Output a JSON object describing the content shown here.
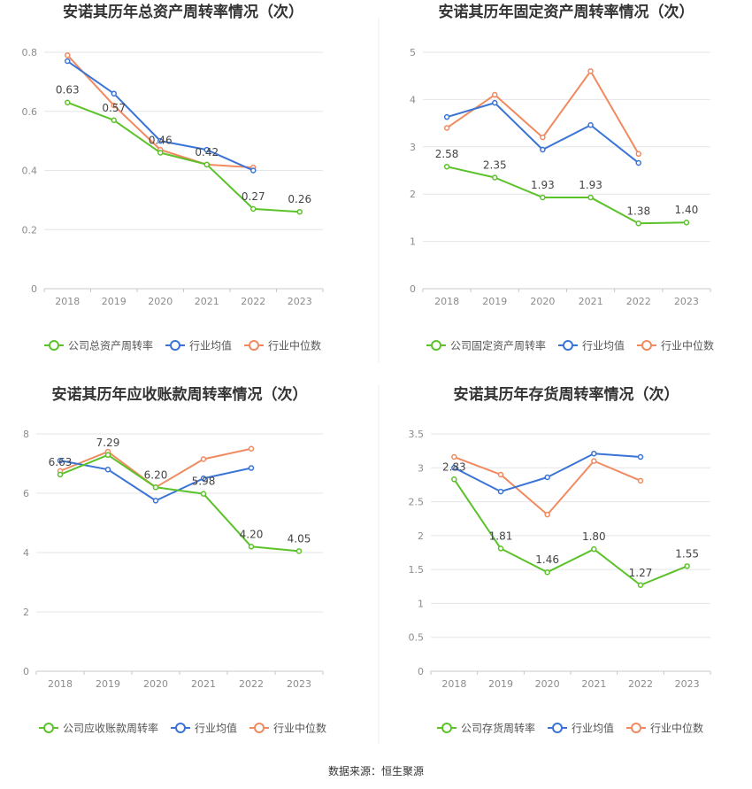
{
  "source": "数据来源：恒生聚源",
  "legend_common": {
    "industry_avg": "行业均值",
    "industry_median": "行业中位数"
  },
  "colors": {
    "company": "#5cc22a",
    "avg": "#3a74d6",
    "median": "#f08a60",
    "grid": "#e5e5ea",
    "axis": "#8c8c8c",
    "title": "#333333"
  },
  "chart_data": [
    {
      "type": "line",
      "title": "安诺其历年总资产周转率情况（次）",
      "categories": [
        "2018",
        "2019",
        "2020",
        "2021",
        "2022",
        "2023"
      ],
      "ylim": [
        0,
        0.8
      ],
      "yticks": [
        0,
        0.2,
        0.4,
        0.6,
        0.8
      ],
      "ytick_labels": [
        "0",
        "0.2",
        "0.4",
        "0.6",
        "0.8"
      ],
      "legend_position": "bottom",
      "series": [
        {
          "name": "公司总资产周转率",
          "key": "company",
          "values": [
            0.63,
            0.57,
            0.46,
            0.42,
            0.27,
            0.26
          ],
          "labels": [
            "0.63",
            "0.57",
            "0.46",
            "0.42",
            "0.27",
            "0.26"
          ]
        },
        {
          "name": "行业均值",
          "key": "avg",
          "values": [
            0.77,
            0.66,
            0.5,
            0.47,
            0.4,
            null
          ]
        },
        {
          "name": "行业中位数",
          "key": "median",
          "values": [
            0.79,
            0.62,
            0.47,
            0.42,
            0.41,
            null
          ]
        }
      ]
    },
    {
      "type": "line",
      "title": "安诺其历年固定资产周转率情况（次）",
      "categories": [
        "2018",
        "2019",
        "2020",
        "2021",
        "2022",
        "2023"
      ],
      "ylim": [
        0,
        5
      ],
      "yticks": [
        0,
        1,
        2,
        3,
        4,
        5
      ],
      "ytick_labels": [
        "0",
        "1",
        "2",
        "3",
        "4",
        "5"
      ],
      "legend_position": "bottom",
      "series": [
        {
          "name": "公司固定资产周转率",
          "key": "company",
          "values": [
            2.58,
            2.35,
            1.93,
            1.93,
            1.38,
            1.4
          ],
          "labels": [
            "2.58",
            "2.35",
            "1.93",
            "1.93",
            "1.38",
            "1.40"
          ]
        },
        {
          "name": "行业均值",
          "key": "avg",
          "values": [
            3.63,
            3.93,
            2.94,
            3.46,
            2.66,
            null
          ]
        },
        {
          "name": "行业中位数",
          "key": "median",
          "values": [
            3.4,
            4.1,
            3.2,
            4.6,
            2.85,
            null
          ]
        }
      ]
    },
    {
      "type": "line",
      "title": "安诺其历年应收账款周转率情况（次）",
      "categories": [
        "2018",
        "2019",
        "2020",
        "2021",
        "2022",
        "2023"
      ],
      "ylim": [
        0,
        8
      ],
      "yticks": [
        0,
        2,
        4,
        6,
        8
      ],
      "ytick_labels": [
        "0",
        "2",
        "4",
        "6",
        "8"
      ],
      "legend_position": "bottom",
      "series": [
        {
          "name": "公司应收账款周转率",
          "key": "company",
          "values": [
            6.63,
            7.29,
            6.2,
            5.98,
            4.2,
            4.05
          ],
          "labels": [
            "6.63",
            "7.29",
            "6.20",
            "5.98",
            "4.20",
            "4.05"
          ]
        },
        {
          "name": "行业均值",
          "key": "avg",
          "values": [
            7.1,
            6.8,
            5.75,
            6.5,
            6.85,
            null
          ]
        },
        {
          "name": "行业中位数",
          "key": "median",
          "values": [
            6.75,
            7.4,
            6.2,
            7.15,
            7.5,
            null
          ]
        }
      ]
    },
    {
      "type": "line",
      "title": "安诺其历年存货周转率情况（次）",
      "categories": [
        "2018",
        "2019",
        "2020",
        "2021",
        "2022",
        "2023"
      ],
      "ylim": [
        0,
        3.5
      ],
      "yticks": [
        0,
        0.5,
        1,
        1.5,
        2,
        2.5,
        3,
        3.5
      ],
      "ytick_labels": [
        "0",
        "0.5",
        "1",
        "1.5",
        "2",
        "2.5",
        "3",
        "3.5"
      ],
      "legend_position": "bottom",
      "series": [
        {
          "name": "公司存货周转率",
          "key": "company",
          "values": [
            2.83,
            1.81,
            1.46,
            1.8,
            1.27,
            1.55
          ],
          "labels": [
            "2.83",
            "1.81",
            "1.46",
            "1.80",
            "1.27",
            "1.55"
          ]
        },
        {
          "name": "行业均值",
          "key": "avg",
          "values": [
            3.0,
            2.65,
            2.86,
            3.21,
            3.16,
            null
          ]
        },
        {
          "name": "行业中位数",
          "key": "median",
          "values": [
            3.16,
            2.9,
            2.31,
            3.1,
            2.81,
            null
          ]
        }
      ]
    }
  ]
}
